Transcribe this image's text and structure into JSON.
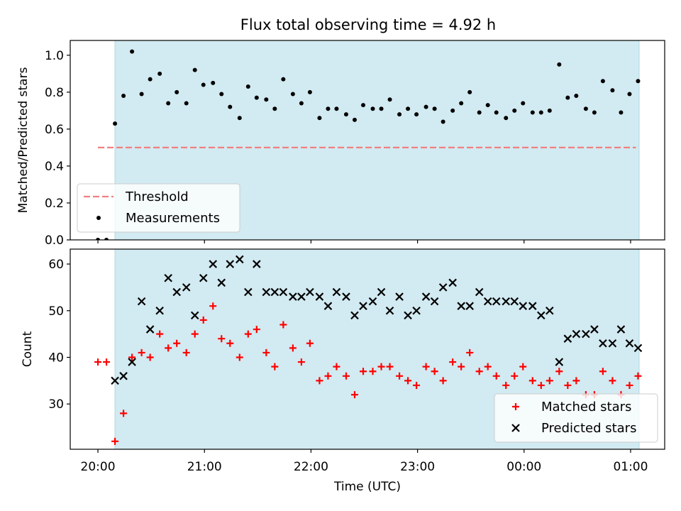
{
  "figure": {
    "title": "Flux total observing time = 4.92 h",
    "xlabel": "Time (UTC)",
    "xticks": [
      {
        "value": 20.0,
        "label": "20:00"
      },
      {
        "value": 21.0,
        "label": "21:00"
      },
      {
        "value": 22.0,
        "label": "22:00"
      },
      {
        "value": 23.0,
        "label": "23:00"
      },
      {
        "value": 24.0,
        "label": "00:00"
      },
      {
        "value": 25.0,
        "label": "01:00"
      }
    ],
    "xlim": [
      19.74,
      25.32
    ],
    "shade_range": [
      20.16,
      25.08
    ],
    "colors": {
      "shade": "#add8e6",
      "threshold": "#f08080",
      "matched": "#ff0000",
      "predicted": "#000000",
      "measurement": "#000000"
    }
  },
  "chart_data": [
    {
      "type": "scatter",
      "ylabel": "Matched/Predicted stars",
      "ylim": [
        0,
        1.08
      ],
      "yticks": [
        {
          "value": 0.0,
          "label": "0.0"
        },
        {
          "value": 0.2,
          "label": "0.2"
        },
        {
          "value": 0.4,
          "label": "0.4"
        },
        {
          "value": 0.6,
          "label": "0.6"
        },
        {
          "value": 0.8,
          "label": "0.8"
        },
        {
          "value": 1.0,
          "label": "1.0"
        }
      ],
      "threshold": {
        "name": "Threshold",
        "y": 0.5,
        "x_range": [
          20.0,
          25.05
        ]
      },
      "legend": {
        "location": "lower-left",
        "entries": [
          "Threshold",
          "Measurements"
        ]
      },
      "series": [
        {
          "name": "Measurements",
          "x": [
            20.0,
            20.08,
            20.16,
            20.24,
            20.32,
            20.41,
            20.49,
            20.58,
            20.66,
            20.74,
            20.83,
            20.91,
            20.99,
            21.08,
            21.16,
            21.24,
            21.33,
            21.41,
            21.49,
            21.58,
            21.66,
            21.74,
            21.83,
            21.91,
            21.99,
            22.08,
            22.16,
            22.24,
            22.33,
            22.41,
            22.49,
            22.58,
            22.66,
            22.74,
            22.83,
            22.91,
            22.99,
            23.08,
            23.16,
            23.24,
            23.33,
            23.41,
            23.49,
            23.58,
            23.66,
            23.74,
            23.83,
            23.91,
            23.99,
            24.08,
            24.16,
            24.24,
            24.33,
            24.41,
            24.49,
            24.58,
            24.66,
            24.74,
            24.83,
            24.91,
            24.99,
            25.07
          ],
          "y": [
            0.0,
            0.0,
            0.63,
            0.78,
            1.02,
            0.79,
            0.87,
            0.9,
            0.74,
            0.8,
            0.74,
            0.92,
            0.84,
            0.85,
            0.79,
            0.72,
            0.66,
            0.83,
            0.77,
            0.76,
            0.71,
            0.87,
            0.79,
            0.74,
            0.8,
            0.66,
            0.71,
            0.71,
            0.68,
            0.65,
            0.73,
            0.71,
            0.71,
            0.76,
            0.68,
            0.71,
            0.68,
            0.72,
            0.71,
            0.64,
            0.7,
            0.74,
            0.8,
            0.69,
            0.73,
            0.69,
            0.66,
            0.7,
            0.74,
            0.69,
            0.69,
            0.7,
            0.95,
            0.77,
            0.78,
            0.71,
            0.69,
            0.86,
            0.81,
            0.69,
            0.79,
            0.86
          ]
        }
      ]
    },
    {
      "type": "scatter",
      "ylabel": "Count",
      "ylim": [
        20.3,
        63.2
      ],
      "yticks": [
        {
          "value": 30,
          "label": "30"
        },
        {
          "value": 40,
          "label": "40"
        },
        {
          "value": 50,
          "label": "50"
        },
        {
          "value": 60,
          "label": "60"
        }
      ],
      "legend": {
        "location": "lower-right",
        "entries": [
          "Matched stars",
          "Predicted stars"
        ]
      },
      "series": [
        {
          "name": "Matched stars",
          "marker": "plus",
          "x": [
            20.0,
            20.08,
            20.16,
            20.24,
            20.32,
            20.41,
            20.49,
            20.58,
            20.66,
            20.74,
            20.83,
            20.91,
            20.99,
            21.08,
            21.16,
            21.24,
            21.33,
            21.41,
            21.49,
            21.58,
            21.66,
            21.74,
            21.83,
            21.91,
            21.99,
            22.08,
            22.16,
            22.24,
            22.33,
            22.41,
            22.49,
            22.58,
            22.66,
            22.74,
            22.83,
            22.91,
            22.99,
            23.08,
            23.16,
            23.24,
            23.33,
            23.41,
            23.49,
            23.58,
            23.66,
            23.74,
            23.83,
            23.91,
            23.99,
            24.08,
            24.16,
            24.24,
            24.33,
            24.41,
            24.49,
            24.58,
            24.66,
            24.74,
            24.83,
            24.91,
            24.99,
            25.07
          ],
          "y": [
            39,
            39,
            22,
            28,
            40,
            41,
            40,
            45,
            42,
            43,
            41,
            45,
            48,
            51,
            44,
            43,
            40,
            45,
            46,
            41,
            38,
            47,
            42,
            39,
            43,
            35,
            36,
            38,
            36,
            32,
            37,
            37,
            38,
            38,
            36,
            35,
            34,
            38,
            37,
            35,
            39,
            38,
            41,
            37,
            38,
            36,
            34,
            36,
            38,
            35,
            34,
            35,
            37,
            34,
            35,
            32,
            32,
            37,
            35,
            32,
            34,
            36
          ]
        },
        {
          "name": "Predicted stars",
          "marker": "x",
          "x": [
            20.16,
            20.24,
            20.32,
            20.41,
            20.49,
            20.58,
            20.66,
            20.74,
            20.83,
            20.91,
            20.99,
            21.08,
            21.16,
            21.24,
            21.33,
            21.41,
            21.49,
            21.58,
            21.66,
            21.74,
            21.83,
            21.91,
            21.99,
            22.08,
            22.16,
            22.24,
            22.33,
            22.41,
            22.49,
            22.58,
            22.66,
            22.74,
            22.83,
            22.91,
            22.99,
            23.08,
            23.16,
            23.24,
            23.33,
            23.41,
            23.49,
            23.58,
            23.66,
            23.74,
            23.83,
            23.91,
            23.99,
            24.08,
            24.16,
            24.24,
            24.33,
            24.41,
            24.49,
            24.58,
            24.66,
            24.74,
            24.83,
            24.91,
            24.99,
            25.07
          ],
          "y": [
            35,
            36,
            39,
            52,
            46,
            50,
            57,
            54,
            55,
            49,
            57,
            60,
            56,
            60,
            61,
            54,
            60,
            54,
            54,
            54,
            53,
            53,
            54,
            53,
            51,
            54,
            53,
            49,
            51,
            52,
            54,
            50,
            53,
            49,
            50,
            53,
            52,
            55,
            56,
            51,
            51,
            54,
            52,
            52,
            52,
            52,
            51,
            51,
            49,
            50,
            39,
            44,
            45,
            45,
            46,
            43,
            43,
            46,
            43,
            42
          ]
        }
      ]
    }
  ]
}
